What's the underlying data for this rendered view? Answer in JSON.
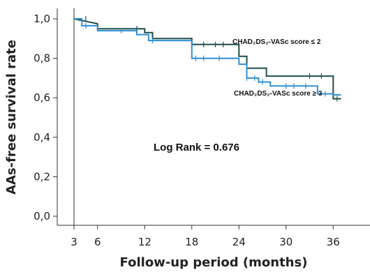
{
  "chart_data": {
    "type": "line",
    "chart_kind": "kaplan-meier step plot",
    "title": "",
    "xlabel": "Follow-up period (months)",
    "ylabel": "AAs-free survival rate",
    "xlim": [
      3,
      37
    ],
    "ylim": [
      0,
      1.0
    ],
    "x_ticks": [
      3,
      6,
      12,
      18,
      24,
      30,
      36
    ],
    "y_ticks": [
      "0,0",
      "0,2",
      "0,4",
      "0,6",
      "0,8",
      "1,0"
    ],
    "y_tick_values": [
      0,
      0.2,
      0.4,
      0.6,
      0.8,
      1.0
    ],
    "grid": false,
    "series": [
      {
        "name": "CHAD₂DS₂-VASc score ≤ 2",
        "color": "#1f4e4a",
        "steps": [
          [
            3,
            1.0
          ],
          [
            6,
            0.975
          ],
          [
            6,
            0.95
          ],
          [
            12,
            0.95
          ],
          [
            12,
            0.93
          ],
          [
            13,
            0.93
          ],
          [
            13,
            0.9
          ],
          [
            18,
            0.9
          ],
          [
            18,
            0.87
          ],
          [
            24,
            0.87
          ],
          [
            24,
            0.81
          ],
          [
            25,
            0.81
          ],
          [
            25,
            0.75
          ],
          [
            27.5,
            0.75
          ],
          [
            27.5,
            0.71
          ],
          [
            36,
            0.71
          ],
          [
            36,
            0.595
          ],
          [
            37,
            0.595
          ]
        ],
        "censor_x": [
          4.5,
          11,
          19.5,
          21,
          22,
          33,
          34.5,
          36.5
        ]
      },
      {
        "name": "CHAD₂DS₂-VASc score ≥ 3",
        "color": "#2f8fd4",
        "steps": [
          [
            3,
            1.0
          ],
          [
            4,
            1.0
          ],
          [
            4,
            0.965
          ],
          [
            6,
            0.965
          ],
          [
            6,
            0.94
          ],
          [
            11,
            0.94
          ],
          [
            11,
            0.92
          ],
          [
            12.5,
            0.92
          ],
          [
            12.5,
            0.89
          ],
          [
            18,
            0.89
          ],
          [
            18,
            0.8
          ],
          [
            24,
            0.8
          ],
          [
            24,
            0.77
          ],
          [
            25,
            0.77
          ],
          [
            25,
            0.7
          ],
          [
            26.5,
            0.7
          ],
          [
            26.5,
            0.68
          ],
          [
            28,
            0.68
          ],
          [
            28,
            0.66
          ],
          [
            34,
            0.66
          ],
          [
            34,
            0.62
          ],
          [
            36,
            0.62
          ],
          [
            36,
            0.615
          ],
          [
            37,
            0.615
          ]
        ],
        "censor_x": [
          4.5,
          9,
          13,
          18.5,
          19.5,
          21.5,
          25,
          26,
          27,
          30,
          31,
          32.5,
          35
        ]
      }
    ],
    "annotations": {
      "series1_label": "CHAD₂DS₂-VASc score ≤ 2",
      "series2_label": "CHAD₂DS₂-VASc score ≥ 3",
      "log_rank": "Log Rank = 0.676"
    }
  }
}
